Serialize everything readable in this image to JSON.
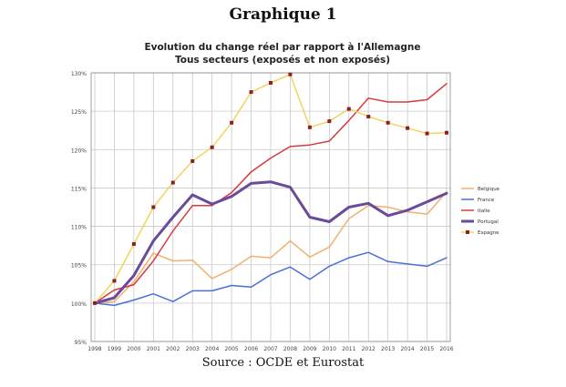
{
  "heading": "Graphique 1",
  "source": "Source : OCDE et Eurostat",
  "colors": {
    "Belgique": "#f2b06e",
    "France": "#4a6fd6",
    "Italie": "#d93a3f",
    "Portugal": "#6a4b9a",
    "Espagne": "#f2d45c",
    "Espagne_marker": "#8a1f25",
    "grid": "#c8c8c8",
    "axis": "#888888"
  },
  "chart_data": {
    "type": "line",
    "title": "Evolution du change réel par rapport à l'Allemagne",
    "subtitle": "Tous secteurs (exposés et non exposés)",
    "xlabel": "",
    "ylabel": "",
    "x": [
      "1998",
      "1999",
      "2000",
      "2001",
      "2002",
      "2003",
      "2004",
      "2005",
      "2006",
      "2007",
      "2008",
      "2009",
      "2010",
      "2011",
      "2012",
      "2013",
      "2014",
      "2015",
      "2016"
    ],
    "ylim": [
      95,
      130
    ],
    "yticks": [
      95,
      100,
      105,
      110,
      115,
      120,
      125,
      130
    ],
    "ytick_labels": [
      "95%",
      "100%",
      "105%",
      "110%",
      "115%",
      "120%",
      "125%",
      "130%"
    ],
    "grid": true,
    "legend": "right",
    "series": [
      {
        "name": "Belgique",
        "values": [
          100,
          100.2,
          102.8,
          106.5,
          105.5,
          105.6,
          103.2,
          104.4,
          106.1,
          105.9,
          108.1,
          106,
          107.3,
          111,
          112.7,
          112.5,
          111.9,
          111.6,
          114.5
        ],
        "marker": false,
        "width": 1.5
      },
      {
        "name": "France",
        "values": [
          100,
          99.7,
          100.4,
          101.2,
          100.2,
          101.6,
          101.6,
          102.3,
          102.1,
          103.7,
          104.7,
          103.1,
          104.8,
          105.9,
          106.6,
          105.4,
          105.1,
          104.8,
          105.9
        ],
        "marker": false,
        "width": 1.5
      },
      {
        "name": "Italie",
        "values": [
          100,
          101.7,
          102.4,
          105.5,
          109.4,
          112.7,
          112.7,
          114.4,
          117.1,
          118.9,
          120.4,
          120.6,
          121.1,
          123.8,
          126.7,
          126.2,
          126.2,
          126.5,
          128.6
        ],
        "marker": false,
        "width": 1.5
      },
      {
        "name": "Portugal",
        "values": [
          100,
          100.7,
          103.6,
          108.1,
          111.2,
          114.1,
          112.9,
          113.9,
          115.6,
          115.8,
          115.1,
          111.2,
          110.6,
          112.5,
          113,
          111.4,
          112.1,
          113.2,
          114.3
        ],
        "marker": false,
        "width": 3
      },
      {
        "name": "Espagne",
        "values": [
          100,
          102.9,
          107.7,
          112.5,
          115.7,
          118.5,
          120.3,
          123.5,
          127.5,
          128.7,
          129.8,
          122.9,
          123.7,
          125.3,
          124.3,
          123.5,
          122.8,
          122.1,
          122.2
        ],
        "marker": true,
        "width": 1.5
      }
    ]
  }
}
